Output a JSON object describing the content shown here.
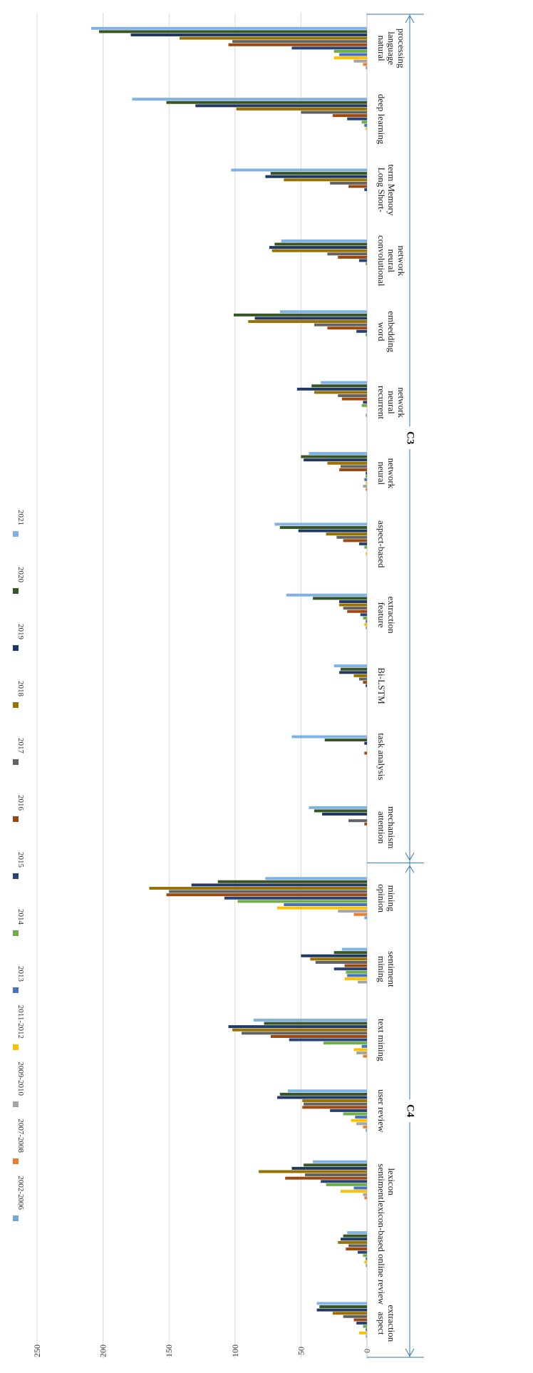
{
  "chart_data": {
    "type": "bar",
    "orientation": "horizontal",
    "title": "",
    "xlabel": "",
    "ylabel": "",
    "xlim": [
      0,
      250
    ],
    "ticks": [
      0,
      50,
      100,
      150,
      200,
      250
    ],
    "grid": true,
    "legend_position": "right",
    "colors": [
      "#6fa8dc",
      "#ed7d31",
      "#a5a5a5",
      "#ffc000",
      "#4472c4",
      "#70ad47",
      "#264478",
      "#9e480e",
      "#636363",
      "#997300",
      "#1f3864",
      "#375623",
      "#7fb2e5"
    ],
    "categories": [
      [
        "natural",
        "language",
        "processing"
      ],
      [
        "deep learning"
      ],
      [
        "Long Short-",
        "term Memory"
      ],
      [
        "convolutional",
        "neural",
        "network"
      ],
      [
        "word",
        "embedding"
      ],
      [
        "recurrent",
        "neural",
        "network"
      ],
      [
        "neural",
        "network"
      ],
      [
        "aspect-based"
      ],
      [
        "feature",
        "extraction"
      ],
      [
        "Bi-LSTM"
      ],
      [
        "task analysis"
      ],
      [
        "attention",
        "mechanism"
      ],
      [
        "opinion",
        "mining"
      ],
      [
        "mining",
        "sentiment"
      ],
      [
        "text mining"
      ],
      [
        "user review"
      ],
      [
        "sentiment",
        "lexicon"
      ],
      [
        "lexicon-based online review"
      ],
      [
        "aspect",
        "extraction"
      ]
    ],
    "series": [
      {
        "name": "2002-2006",
        "values": [
          1,
          0,
          0,
          0,
          0,
          0,
          0,
          0,
          0,
          0,
          0,
          0,
          2,
          0,
          0,
          1,
          0,
          0,
          0
        ]
      },
      {
        "name": "2007-2008",
        "values": [
          3,
          0,
          0,
          0,
          0,
          0,
          1,
          0,
          0,
          0,
          0,
          0,
          10,
          0,
          3,
          3,
          2,
          0,
          0
        ]
      },
      {
        "name": "2009-2010",
        "values": [
          10,
          0,
          0,
          0,
          0,
          1,
          3,
          0,
          1,
          0,
          0,
          0,
          22,
          7,
          8,
          8,
          3,
          1,
          1
        ]
      },
      {
        "name": "2011-2012",
        "values": [
          25,
          1,
          0,
          0,
          0,
          0,
          1,
          1,
          2,
          0,
          0,
          0,
          68,
          17,
          10,
          12,
          20,
          2,
          6
        ]
      },
      {
        "name": "2013",
        "values": [
          21,
          2,
          0,
          0,
          0,
          0,
          2,
          0,
          1,
          0,
          0,
          0,
          63,
          15,
          4,
          9,
          10,
          1,
          1
        ]
      },
      {
        "name": "2014",
        "values": [
          25,
          4,
          0,
          1,
          1,
          4,
          1,
          2,
          3,
          0,
          0,
          0,
          98,
          16,
          33,
          18,
          31,
          3,
          3
        ]
      },
      {
        "name": "2015",
        "values": [
          57,
          15,
          2,
          6,
          8,
          3,
          1,
          6,
          5,
          1,
          0,
          0,
          108,
          25,
          59,
          28,
          35,
          7,
          8
        ]
      },
      {
        "name": "2016",
        "values": [
          105,
          26,
          14,
          22,
          30,
          19,
          21,
          18,
          15,
          3,
          2,
          2,
          152,
          17,
          73,
          49,
          62,
          16,
          10
        ]
      },
      {
        "name": "2017",
        "values": [
          102,
          50,
          28,
          30,
          40,
          22,
          20,
          23,
          18,
          6,
          0,
          14,
          150,
          39,
          95,
          48,
          47,
          14,
          18
        ]
      },
      {
        "name": "2018",
        "values": [
          142,
          99,
          63,
          72,
          90,
          40,
          30,
          31,
          21,
          10,
          0,
          0,
          165,
          43,
          102,
          49,
          82,
          22,
          26
        ]
      },
      {
        "name": "2019",
        "values": [
          179,
          130,
          77,
          74,
          85,
          53,
          48,
          52,
          21,
          21,
          2,
          34,
          133,
          50,
          105,
          68,
          57,
          20,
          38
        ]
      },
      {
        "name": "2020",
        "values": [
          203,
          152,
          73,
          70,
          101,
          42,
          50,
          66,
          41,
          20,
          32,
          40,
          113,
          25,
          78,
          66,
          48,
          18,
          36
        ]
      },
      {
        "name": "2021",
        "values": [
          209,
          178,
          103,
          65,
          66,
          35,
          44,
          70,
          61,
          25,
          57,
          44,
          77,
          19,
          86,
          60,
          41,
          15,
          38
        ]
      }
    ],
    "groups": [
      {
        "label": "C3",
        "start": 0,
        "end": 11
      },
      {
        "label": "C4",
        "start": 12,
        "end": 18
      }
    ]
  }
}
